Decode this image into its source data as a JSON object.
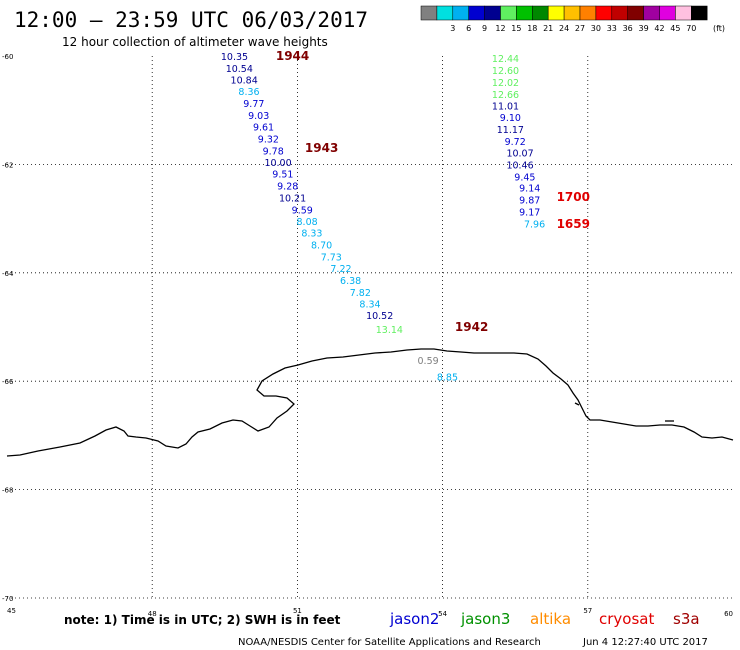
{
  "header": {
    "title": "12:00 – 23:59 UTC 06/03/2017",
    "subtitle": "12 hour collection of altimeter wave heights"
  },
  "footer": {
    "note": "note:  1) Time is in UTC;  2) SWH is in feet",
    "credit": "NOAA/NESDIS Center for Satellite Applications and Research",
    "timestamp": "Jun  4 12:27:40 UTC 2017"
  },
  "legend": {
    "unit": "(ft)",
    "bins": [
      {
        "label": "",
        "color": "#808080"
      },
      {
        "label": "3",
        "color": "#00e0e0"
      },
      {
        "label": "6",
        "color": "#00b0f0"
      },
      {
        "label": "9",
        "color": "#0000d0"
      },
      {
        "label": "12",
        "color": "#000090"
      },
      {
        "label": "15",
        "color": "#60f060"
      },
      {
        "label": "18",
        "color": "#00c000"
      },
      {
        "label": "21",
        "color": "#008800"
      },
      {
        "label": "24",
        "color": "#ffff00"
      },
      {
        "label": "27",
        "color": "#ffc000"
      },
      {
        "label": "30",
        "color": "#ff8000"
      },
      {
        "label": "33",
        "color": "#ff0000"
      },
      {
        "label": "36",
        "color": "#c00000"
      },
      {
        "label": "39",
        "color": "#800000"
      },
      {
        "label": "42",
        "color": "#a000a0"
      },
      {
        "label": "45",
        "color": "#e000e0"
      },
      {
        "label": "70",
        "color": "#ffc0e0"
      },
      {
        "label": "",
        "color": "#000000"
      }
    ]
  },
  "satellites": [
    {
      "name": "jason2",
      "color": "#0000d0"
    },
    {
      "name": "jason3",
      "color": "#009000"
    },
    {
      "name": "altika",
      "color": "#ff8c00"
    },
    {
      "name": "cryosat",
      "color": "#e00000"
    },
    {
      "name": "s3a",
      "color": "#a00000"
    }
  ],
  "chart_data": {
    "type": "scatter",
    "xlim": [
      45,
      60
    ],
    "ylim": [
      -70,
      -60
    ],
    "xticks": [
      "45",
      "48",
      "51",
      "54",
      "57",
      "60"
    ],
    "yticks": [
      "-60",
      "-62",
      "-64",
      "-66",
      "-68",
      "-70"
    ],
    "grid": true,
    "series": [
      {
        "name": "jason2",
        "points": [
          {
            "lon": 49.7,
            "lat": -60.0,
            "swh": "10.35",
            "color": "#000090"
          },
          {
            "lon": 49.8,
            "lat": -60.22,
            "swh": "10.54",
            "color": "#000090"
          },
          {
            "lon": 49.9,
            "lat": -60.43,
            "swh": "10.84",
            "color": "#000090"
          },
          {
            "lon": 50.0,
            "lat": -60.65,
            "swh": "8.36",
            "color": "#00b0f0"
          },
          {
            "lon": 50.1,
            "lat": -60.87,
            "swh": "9.77",
            "color": "#0000d0"
          },
          {
            "lon": 50.2,
            "lat": -61.09,
            "swh": "9.03",
            "color": "#0000d0"
          },
          {
            "lon": 50.3,
            "lat": -61.3,
            "swh": "9.61",
            "color": "#0000d0"
          },
          {
            "lon": 50.4,
            "lat": -61.52,
            "swh": "9.32",
            "color": "#0000d0"
          },
          {
            "lon": 50.5,
            "lat": -61.74,
            "swh": "9.78",
            "color": "#0000d0"
          },
          {
            "lon": 50.6,
            "lat": -61.96,
            "swh": "10.00",
            "color": "#000090"
          },
          {
            "lon": 50.7,
            "lat": -62.17,
            "swh": "9.51",
            "color": "#0000d0"
          },
          {
            "lon": 50.8,
            "lat": -62.39,
            "swh": "9.28",
            "color": "#0000d0"
          },
          {
            "lon": 50.9,
            "lat": -62.61,
            "swh": "10.21",
            "color": "#000090"
          },
          {
            "lon": 51.1,
            "lat": -62.83,
            "swh": "9.59",
            "color": "#0000d0"
          },
          {
            "lon": 51.2,
            "lat": -63.04,
            "swh": "8.08",
            "color": "#00b0f0"
          },
          {
            "lon": 51.3,
            "lat": -63.26,
            "swh": "8.33",
            "color": "#00b0f0"
          },
          {
            "lon": 51.5,
            "lat": -63.48,
            "swh": "8.70",
            "color": "#00b0f0"
          },
          {
            "lon": 51.7,
            "lat": -63.7,
            "swh": "7.73",
            "color": "#00b0f0"
          },
          {
            "lon": 51.9,
            "lat": -63.91,
            "swh": "7.22",
            "color": "#00b0f0"
          },
          {
            "lon": 52.1,
            "lat": -64.13,
            "swh": "6.38",
            "color": "#00b0f0"
          },
          {
            "lon": 52.3,
            "lat": -64.35,
            "swh": "7.82",
            "color": "#00b0f0"
          },
          {
            "lon": 52.5,
            "lat": -64.57,
            "swh": "8.34",
            "color": "#00b0f0"
          },
          {
            "lon": 52.7,
            "lat": -64.78,
            "swh": "10.52",
            "color": "#000090"
          },
          {
            "lon": 52.9,
            "lat": -65.04,
            "swh": "13.14",
            "color": "#60f060"
          },
          {
            "lon": 53.7,
            "lat": -65.61,
            "swh": "0.59",
            "color": "#808080"
          },
          {
            "lon": 54.1,
            "lat": -65.91,
            "swh": "8.85",
            "color": "#00b0f0"
          }
        ]
      },
      {
        "name": "jason3",
        "points": [
          {
            "lon": 55.3,
            "lat": -60.04,
            "swh": "12.44",
            "color": "#60f060"
          },
          {
            "lon": 55.3,
            "lat": -60.26,
            "swh": "12.60",
            "color": "#60f060"
          },
          {
            "lon": 55.3,
            "lat": -60.48,
            "swh": "12.02",
            "color": "#60f060"
          },
          {
            "lon": 55.3,
            "lat": -60.7,
            "swh": "12.66",
            "color": "#60f060"
          },
          {
            "lon": 55.3,
            "lat": -60.91,
            "swh": "11.01",
            "color": "#000090"
          },
          {
            "lon": 55.4,
            "lat": -61.13,
            "swh": "9.10",
            "color": "#0000d0"
          },
          {
            "lon": 55.4,
            "lat": -61.35,
            "swh": "11.17",
            "color": "#000090"
          },
          {
            "lon": 55.5,
            "lat": -61.57,
            "swh": "9.72",
            "color": "#0000d0"
          },
          {
            "lon": 55.6,
            "lat": -61.78,
            "swh": "10.07",
            "color": "#000090"
          },
          {
            "lon": 55.6,
            "lat": -62.0,
            "swh": "10.46",
            "color": "#000090"
          },
          {
            "lon": 55.7,
            "lat": -62.22,
            "swh": "9.45",
            "color": "#0000d0"
          },
          {
            "lon": 55.8,
            "lat": -62.43,
            "swh": "9.14",
            "color": "#0000d0"
          },
          {
            "lon": 55.8,
            "lat": -62.65,
            "swh": "9.87",
            "color": "#0000d0"
          },
          {
            "lon": 55.8,
            "lat": -62.87,
            "swh": "9.17",
            "color": "#0000d0"
          },
          {
            "lon": 55.9,
            "lat": -63.09,
            "swh": "7.96",
            "color": "#00b0f0"
          }
        ]
      }
    ],
    "time_labels": [
      {
        "text": "1944",
        "lon": 50.9,
        "lat": -60.0,
        "color": "#800000"
      },
      {
        "text": "1943",
        "lon": 51.5,
        "lat": -61.7,
        "color": "#800000"
      },
      {
        "text": "1942",
        "lon": 54.6,
        "lat": -65.0,
        "color": "#800000"
      },
      {
        "text": "1700",
        "lon": 56.7,
        "lat": -62.6,
        "color": "#e00000"
      },
      {
        "text": "1659",
        "lon": 56.7,
        "lat": -63.1,
        "color": "#e00000"
      }
    ],
    "coastline_color": "#000000"
  }
}
